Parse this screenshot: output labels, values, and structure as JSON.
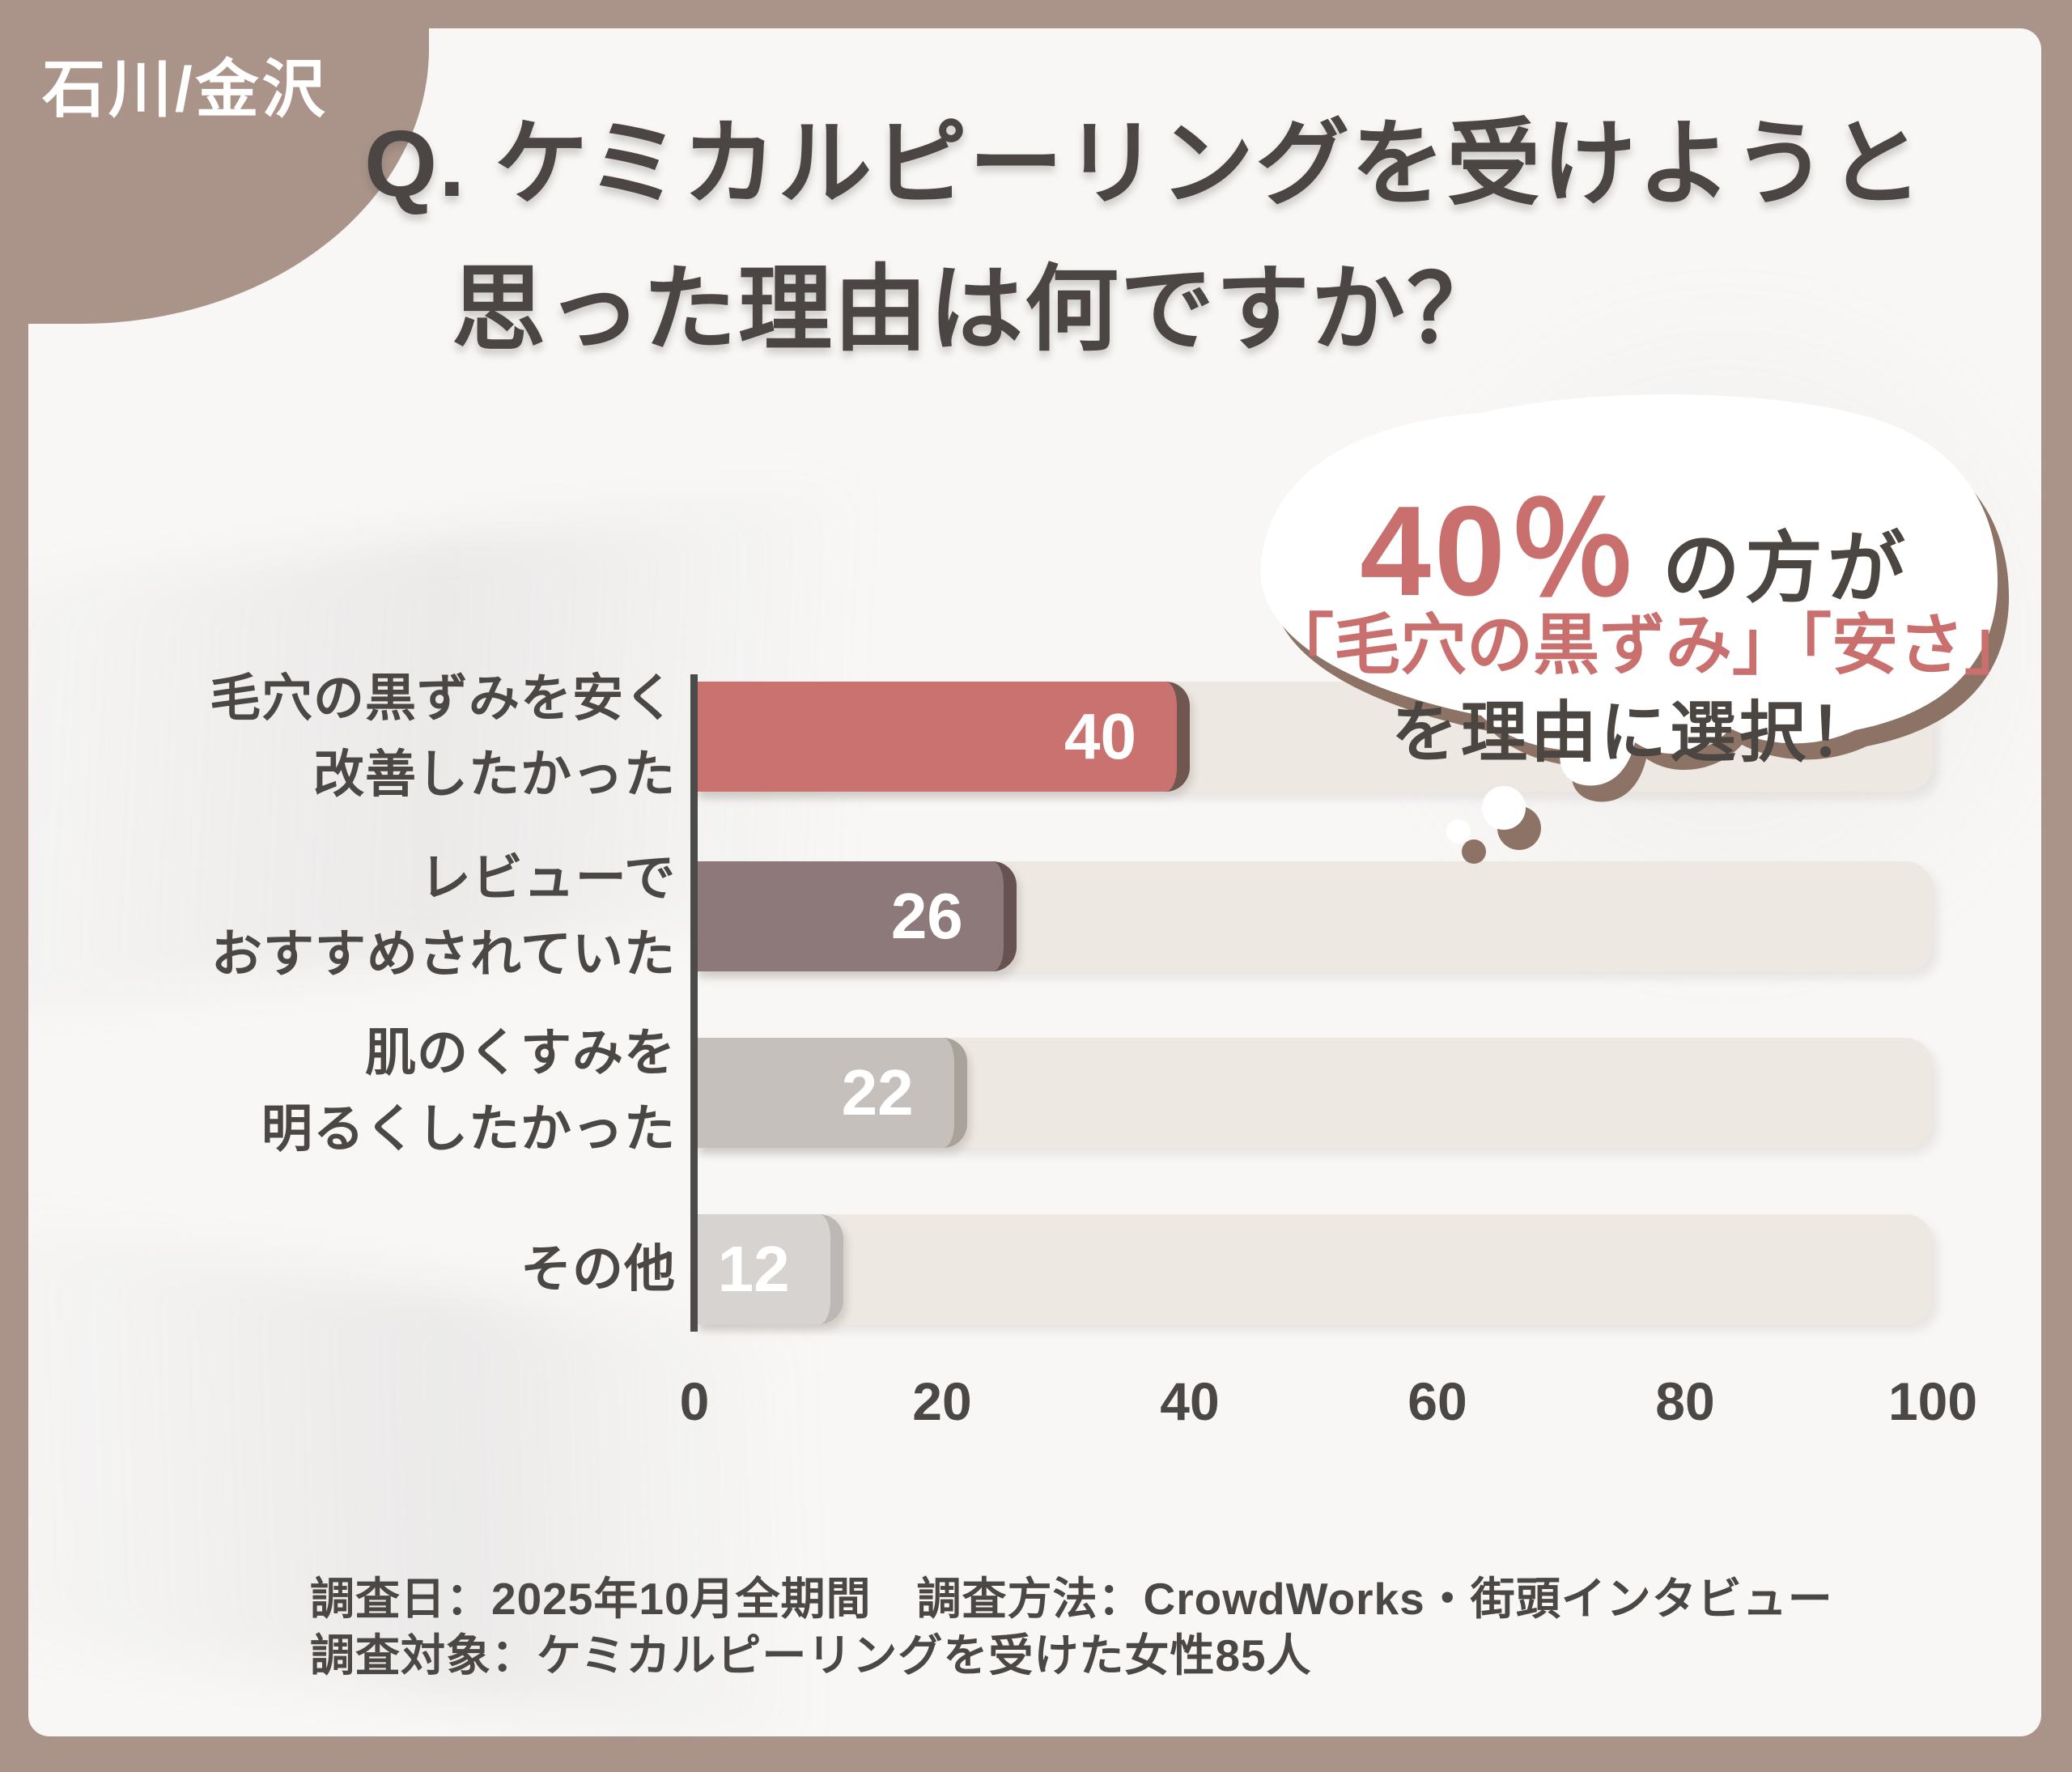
{
  "badge": {
    "label": "石川/金沢"
  },
  "title": {
    "line1": "Q. ケミカルピーリングを受けようと",
    "line2": "思った理由は何ですか？"
  },
  "bubble": {
    "highlight_value": "40％",
    "suffix": "の方が",
    "line2": "「毛穴の黒ずみ」「安さ」",
    "line3": "を理由に選択！",
    "highlight_color": "#C9706E",
    "shadow_color": "#8C7365"
  },
  "chart_data": {
    "type": "bar",
    "orientation": "horizontal",
    "title": "Q. ケミカルピーリングを受けようと思った理由は何ですか？",
    "unit": "%",
    "categories": [
      "毛穴の黒ずみを安く改善したかった",
      "レビューでおすすめされていた",
      "肌のくすみを明るくしたかった",
      "その他"
    ],
    "values": [
      40,
      26,
      22,
      12
    ],
    "value_labels": [
      "40",
      "26",
      "22",
      "12"
    ],
    "xlim": [
      0,
      100
    ],
    "x_ticks": [
      "0",
      "20",
      "40",
      "60",
      "80",
      "100"
    ],
    "x_tick_values": [
      0,
      20,
      40,
      60,
      80,
      100
    ],
    "grid": false,
    "legend": false,
    "bar_colors": [
      "#C97270",
      "#8D7979",
      "#C5C0BB",
      "#D6D3D1"
    ],
    "bar_edge_colors": [
      "#6F5750",
      "#665251",
      "#A9A29B",
      "#BCB8B5"
    ],
    "track_color": "#EDE8E2",
    "rows": [
      {
        "label_line1": "毛穴の黒ずみを安く",
        "label_line2": "改善したかった",
        "value": "40"
      },
      {
        "label_line1": "レビューで",
        "label_line2": "おすすめされていた",
        "value": "26"
      },
      {
        "label_line1": "肌のくすみを",
        "label_line2": "明るくしたかった",
        "value": "22"
      },
      {
        "label_line1": "その他",
        "label_line2": "",
        "value": "12"
      }
    ]
  },
  "footer": {
    "line1": "調査日：2025年10月全期間　調査方法：CrowdWorks・街頭インタビュー",
    "line2": "調査対象：ケミカルピーリングを受けた女性85人"
  },
  "colors": {
    "frame": "#AA948A",
    "content_bg": "#F8F7F6",
    "text_dark": "#4B4643",
    "axis": "#4B4B49"
  }
}
